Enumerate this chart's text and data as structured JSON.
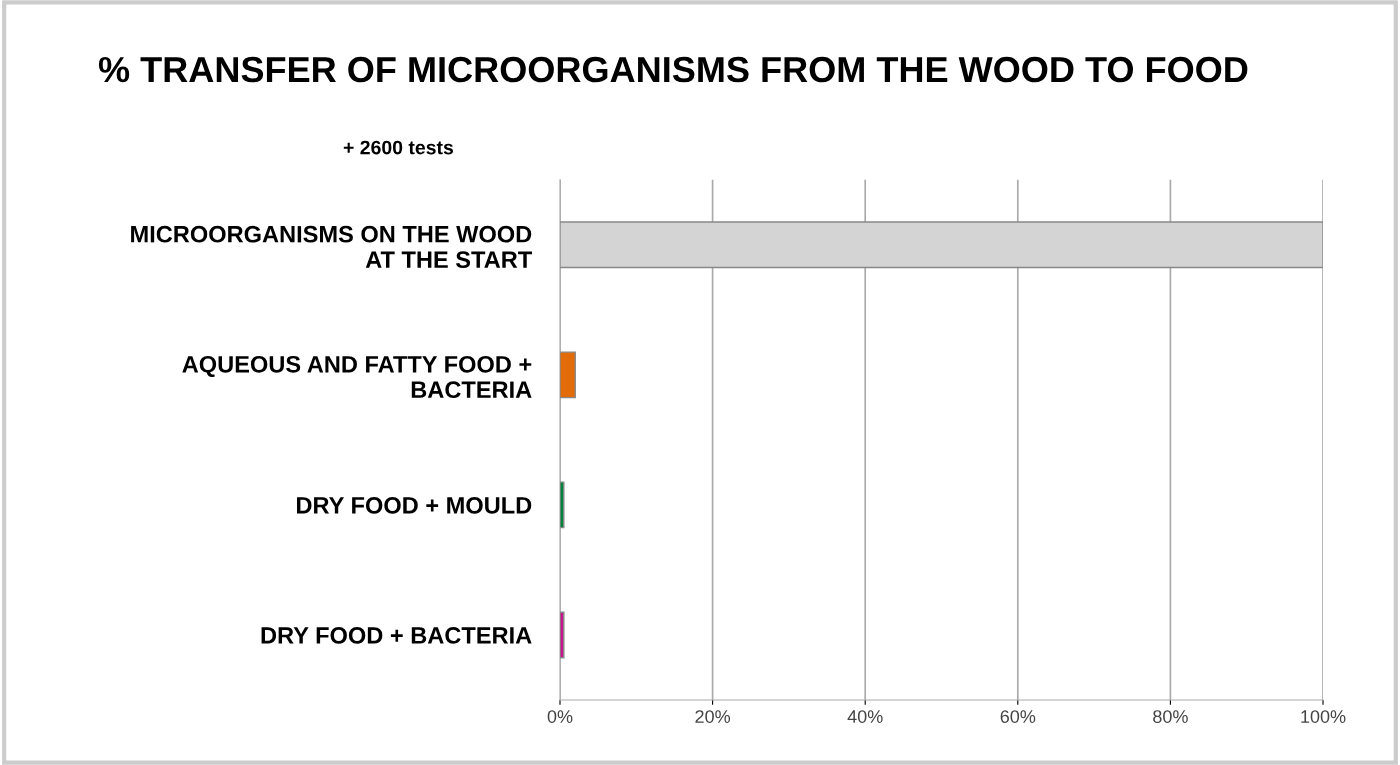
{
  "chart_data": {
    "type": "bar",
    "orientation": "horizontal",
    "title": "% TRANSFER OF MICROORGANISMS FROM THE WOOD TO FOOD",
    "annotations": [
      "+ 2600 tests"
    ],
    "categories": [
      "MICROORGANISMS ON THE WOOD\nAT THE START",
      "AQUEOUS AND FATTY FOOD +\nBACTERIA",
      "DRY FOOD + MOULD",
      "DRY FOOD + BACTERIA"
    ],
    "values": [
      100,
      2,
      0.5,
      0.5
    ],
    "colors": [
      "#d4d4d4",
      "#e36c0a",
      "#00843d",
      "#c4198e"
    ],
    "xlim": [
      0,
      100
    ],
    "xticks": [
      {
        "value": 0,
        "label": "0%"
      },
      {
        "value": 20,
        "label": "20%"
      },
      {
        "value": 40,
        "label": "40%"
      },
      {
        "value": 60,
        "label": "60%"
      },
      {
        "value": 80,
        "label": "80%"
      },
      {
        "value": 100,
        "label": "100%"
      }
    ],
    "grid": "x",
    "legend": false
  }
}
